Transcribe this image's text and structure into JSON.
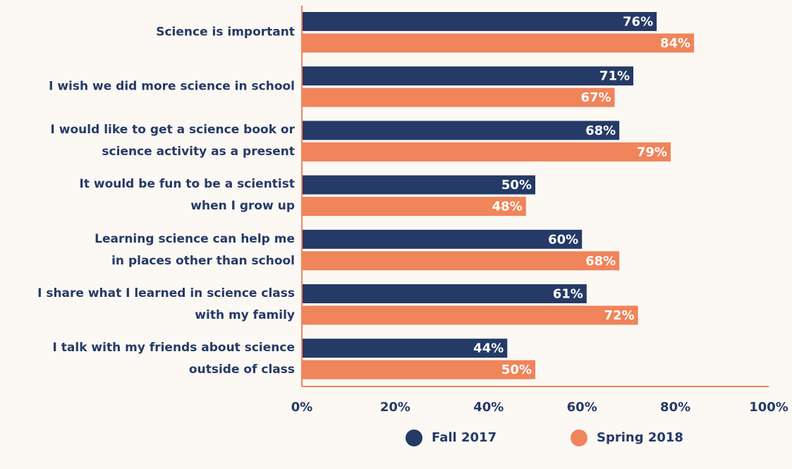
{
  "chart_data": {
    "type": "bar",
    "orientation": "horizontal",
    "categories": [
      "Science is important",
      "I wish we did more science in school",
      "I would like to get a science book or\nscience activity as a present",
      "It would be fun to be a scientist\nwhen I grow up",
      "Learning science can help me\nin places other than school",
      "I share what I learned in science class\nwith my family",
      "I talk with my friends about science\noutside of class"
    ],
    "series": [
      {
        "name": "Fall 2017",
        "color": "#253a66",
        "values": [
          76,
          71,
          68,
          50,
          60,
          61,
          44
        ],
        "value_labels": [
          "76%",
          "71%",
          "68%",
          "50%",
          "60%",
          "61%",
          "44%"
        ]
      },
      {
        "name": "Spring 2018",
        "color": "#f0845a",
        "values": [
          84,
          67,
          79,
          48,
          68,
          72,
          50
        ],
        "value_labels": [
          "84%",
          "67%",
          "79%",
          "48%",
          "68%",
          "72%",
          "50%"
        ]
      }
    ],
    "xlim": [
      0,
      100
    ],
    "xticks": [
      {
        "value": 0,
        "label": "0%"
      },
      {
        "value": 20,
        "label": "20%"
      },
      {
        "value": 40,
        "label": "40%"
      },
      {
        "value": 60,
        "label": "60%"
      },
      {
        "value": 80,
        "label": "80%"
      },
      {
        "value": 100,
        "label": "100%"
      }
    ],
    "legend": "bottom"
  }
}
